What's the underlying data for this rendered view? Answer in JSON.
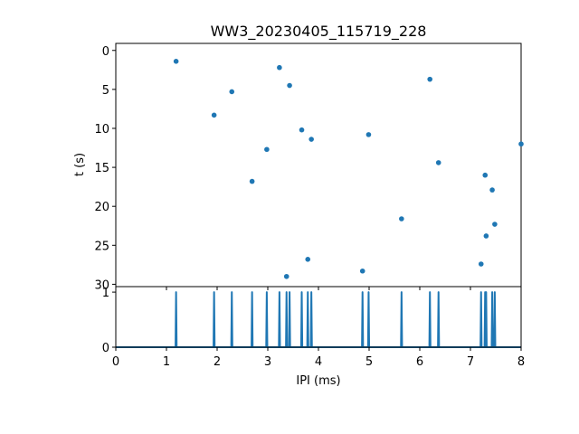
{
  "title": "WW3_20230405_115719_228",
  "colors": {
    "series": "#1f77b4",
    "axes": "#000000"
  },
  "chart_data": [
    {
      "type": "scatter",
      "title": "WW3_20230405_115719_228",
      "xlabel": "",
      "ylabel": "t (s)",
      "xlim": [
        0,
        8
      ],
      "ylim": [
        30.3,
        -0.9
      ],
      "y_inverted": true,
      "yticks": [
        0,
        5,
        10,
        15,
        20,
        25,
        30
      ],
      "x_tick_labels_shown": false,
      "grid": false,
      "points": [
        {
          "x": 1.19,
          "y": 1.4
        },
        {
          "x": 1.94,
          "y": 8.3
        },
        {
          "x": 2.29,
          "y": 5.3
        },
        {
          "x": 2.69,
          "y": 16.8
        },
        {
          "x": 2.98,
          "y": 12.7
        },
        {
          "x": 3.23,
          "y": 2.2
        },
        {
          "x": 3.37,
          "y": 29.0
        },
        {
          "x": 3.43,
          "y": 4.5
        },
        {
          "x": 3.67,
          "y": 10.2
        },
        {
          "x": 3.79,
          "y": 26.8
        },
        {
          "x": 3.86,
          "y": 11.4
        },
        {
          "x": 4.87,
          "y": 28.3
        },
        {
          "x": 4.99,
          "y": 10.8
        },
        {
          "x": 5.64,
          "y": 21.6
        },
        {
          "x": 6.2,
          "y": 3.7
        },
        {
          "x": 6.37,
          "y": 14.4
        },
        {
          "x": 7.21,
          "y": 27.4
        },
        {
          "x": 7.29,
          "y": 16.0
        },
        {
          "x": 7.31,
          "y": 23.8
        },
        {
          "x": 7.43,
          "y": 17.9
        },
        {
          "x": 7.48,
          "y": 22.3
        },
        {
          "x": 8.0,
          "y": 12.0
        }
      ]
    },
    {
      "type": "line",
      "xlabel": "IPI (ms)",
      "ylabel": "",
      "xlim": [
        0,
        8
      ],
      "ylim": [
        0,
        1.1
      ],
      "xticks": [
        0,
        1,
        2,
        3,
        4,
        5,
        6,
        7,
        8
      ],
      "yticks": [
        0,
        1
      ],
      "grid": false,
      "spikes_x": [
        1.19,
        1.94,
        2.29,
        2.69,
        2.98,
        3.23,
        3.37,
        3.43,
        3.67,
        3.79,
        3.86,
        4.87,
        4.99,
        5.64,
        6.2,
        6.37,
        7.21,
        7.29,
        7.31,
        7.43,
        7.48
      ],
      "spike_value": 1,
      "baseline_value": 0
    }
  ]
}
